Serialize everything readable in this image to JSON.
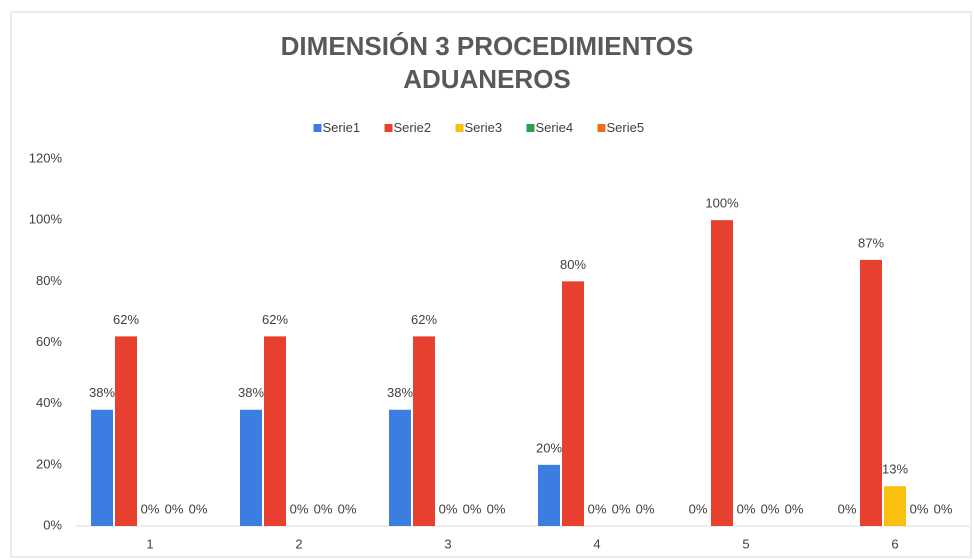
{
  "chart_data": {
    "type": "bar",
    "title": "DIMENSIÓN 3 PROCEDIMIENTOS ADUANEROS",
    "categories": [
      "1",
      "2",
      "3",
      "4",
      "5",
      "6"
    ],
    "series": [
      {
        "name": "Serie1",
        "color": "#3b7de0",
        "values": [
          38,
          38,
          38,
          20,
          0,
          0
        ],
        "value_labels": [
          "38%",
          "38%",
          "38%",
          "20%",
          "0%",
          "0%"
        ]
      },
      {
        "name": "Serie2",
        "color": "#e8402f",
        "values": [
          62,
          62,
          62,
          80,
          100,
          87
        ],
        "value_labels": [
          "62%",
          "62%",
          "62%",
          "80%",
          "100%",
          "87%"
        ]
      },
      {
        "name": "Serie3",
        "color": "#f9c00f",
        "values": [
          0,
          0,
          0,
          0,
          0,
          13
        ],
        "value_labels": [
          "0%",
          "0%",
          "0%",
          "0%",
          "0%",
          "13%"
        ]
      },
      {
        "name": "Serie4",
        "color": "#2ca048",
        "values": [
          0,
          0,
          0,
          0,
          0,
          0
        ],
        "value_labels": [
          "0%",
          "0%",
          "0%",
          "0%",
          "0%",
          "0%"
        ]
      },
      {
        "name": "Serie5",
        "color": "#f36c1b",
        "values": [
          0,
          0,
          0,
          0,
          0,
          0
        ],
        "value_labels": [
          "0%",
          "0%",
          "0%",
          "0%",
          "0%",
          "0%"
        ]
      }
    ],
    "ylim": [
      0,
      120
    ],
    "yticks": [
      {
        "value": 0,
        "label": "0%"
      },
      {
        "value": 20,
        "label": "20%"
      },
      {
        "value": 40,
        "label": "40%"
      },
      {
        "value": 60,
        "label": "60%"
      },
      {
        "value": 80,
        "label": "80%"
      },
      {
        "value": 100,
        "label": "100%"
      },
      {
        "value": 120,
        "label": "120%"
      }
    ],
    "grid": false,
    "legend": "top"
  }
}
